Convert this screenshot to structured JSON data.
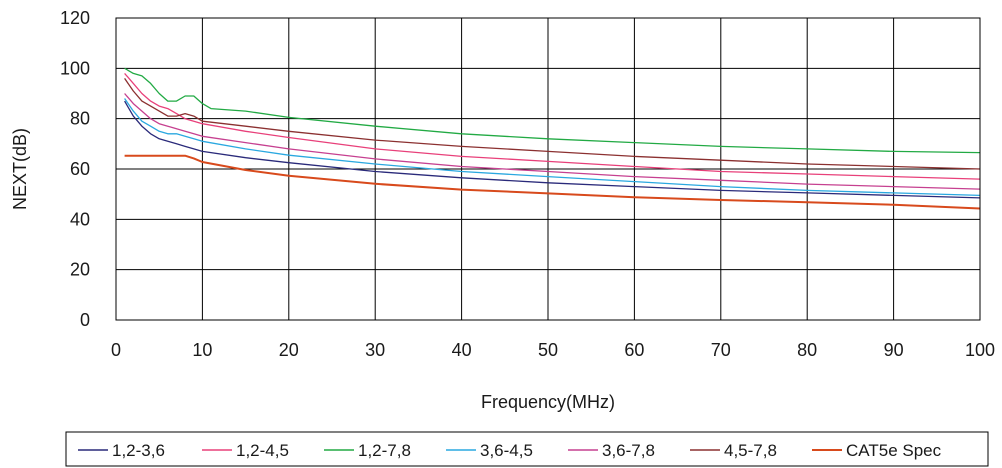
{
  "chart_data": {
    "type": "line",
    "xlabel": "Frequency(MHz)",
    "ylabel": "NEXT(dB)",
    "xlim": [
      0,
      100
    ],
    "ylim": [
      0,
      120
    ],
    "xticks": [
      0,
      10,
      20,
      30,
      40,
      50,
      60,
      70,
      80,
      90,
      100
    ],
    "yticks": [
      0,
      20,
      40,
      60,
      80,
      100,
      120
    ],
    "grid": true,
    "legend_position": "bottom",
    "series": [
      {
        "name": "1,2-3,6",
        "color": "#2a2a7a",
        "points": [
          [
            1,
            87
          ],
          [
            2,
            81
          ],
          [
            3,
            77
          ],
          [
            4,
            74
          ],
          [
            5,
            72
          ],
          [
            6,
            71
          ],
          [
            7,
            70
          ],
          [
            8,
            69
          ],
          [
            9,
            68
          ],
          [
            10,
            67
          ],
          [
            15,
            64.5
          ],
          [
            20,
            62.5
          ],
          [
            30,
            59
          ],
          [
            40,
            56.5
          ],
          [
            50,
            54.5
          ],
          [
            60,
            53
          ],
          [
            70,
            51.5
          ],
          [
            80,
            50.5
          ],
          [
            90,
            49.5
          ],
          [
            100,
            48.5
          ]
        ]
      },
      {
        "name": "1,2-4,5",
        "color": "#e8407a",
        "points": [
          [
            1,
            98
          ],
          [
            2,
            94
          ],
          [
            3,
            90
          ],
          [
            4,
            87
          ],
          [
            5,
            85
          ],
          [
            6,
            84
          ],
          [
            7,
            82
          ],
          [
            8,
            80
          ],
          [
            9,
            79
          ],
          [
            10,
            78
          ],
          [
            15,
            75
          ],
          [
            20,
            72.5
          ],
          [
            30,
            68
          ],
          [
            40,
            65
          ],
          [
            50,
            63
          ],
          [
            60,
            61
          ],
          [
            70,
            59
          ],
          [
            80,
            58
          ],
          [
            90,
            57
          ],
          [
            100,
            56
          ]
        ]
      },
      {
        "name": "1,2-7,8",
        "color": "#22aa44",
        "points": [
          [
            1,
            100
          ],
          [
            2,
            98
          ],
          [
            3,
            97
          ],
          [
            4,
            94
          ],
          [
            5,
            90
          ],
          [
            6,
            87
          ],
          [
            7,
            87
          ],
          [
            8,
            89
          ],
          [
            9,
            89
          ],
          [
            10,
            86
          ],
          [
            11,
            84
          ],
          [
            15,
            83
          ],
          [
            20,
            80.5
          ],
          [
            30,
            77
          ],
          [
            40,
            74
          ],
          [
            50,
            72
          ],
          [
            60,
            70.5
          ],
          [
            70,
            69
          ],
          [
            80,
            68
          ],
          [
            90,
            67
          ],
          [
            100,
            66.5
          ]
        ]
      },
      {
        "name": "3,6-4,5",
        "color": "#2aa8e0",
        "points": [
          [
            1,
            88
          ],
          [
            2,
            83
          ],
          [
            3,
            79
          ],
          [
            4,
            77
          ],
          [
            5,
            75
          ],
          [
            6,
            74
          ],
          [
            7,
            74
          ],
          [
            8,
            73
          ],
          [
            9,
            72
          ],
          [
            10,
            71
          ],
          [
            15,
            68
          ],
          [
            20,
            65.5
          ],
          [
            30,
            62
          ],
          [
            40,
            59
          ],
          [
            50,
            57
          ],
          [
            60,
            55
          ],
          [
            70,
            53
          ],
          [
            80,
            51.5
          ],
          [
            90,
            50.5
          ],
          [
            100,
            49.5
          ]
        ]
      },
      {
        "name": "3,6-7,8",
        "color": "#c64090",
        "points": [
          [
            1,
            90
          ],
          [
            2,
            86
          ],
          [
            3,
            83
          ],
          [
            4,
            80
          ],
          [
            5,
            78
          ],
          [
            6,
            77
          ],
          [
            7,
            76
          ],
          [
            8,
            75
          ],
          [
            9,
            74
          ],
          [
            10,
            73
          ],
          [
            15,
            70.5
          ],
          [
            20,
            68
          ],
          [
            30,
            64
          ],
          [
            40,
            61
          ],
          [
            50,
            59
          ],
          [
            60,
            57
          ],
          [
            70,
            55.5
          ],
          [
            80,
            54
          ],
          [
            90,
            53
          ],
          [
            100,
            52
          ]
        ]
      },
      {
        "name": "4,5-7,8",
        "color": "#8b3030",
        "points": [
          [
            1,
            96
          ],
          [
            2,
            91
          ],
          [
            3,
            87
          ],
          [
            4,
            85
          ],
          [
            5,
            83
          ],
          [
            6,
            81
          ],
          [
            7,
            81
          ],
          [
            8,
            82
          ],
          [
            9,
            81
          ],
          [
            10,
            79
          ],
          [
            15,
            77
          ],
          [
            20,
            75
          ],
          [
            30,
            71.5
          ],
          [
            40,
            69
          ],
          [
            50,
            67
          ],
          [
            60,
            65
          ],
          [
            70,
            63.5
          ],
          [
            80,
            62
          ],
          [
            90,
            61
          ],
          [
            100,
            60
          ]
        ]
      },
      {
        "name": "CAT5e Spec",
        "color": "#d84a1c",
        "points": [
          [
            1,
            65.3
          ],
          [
            2,
            65.3
          ],
          [
            3,
            65.3
          ],
          [
            4,
            65.3
          ],
          [
            5,
            65.3
          ],
          [
            6,
            65.3
          ],
          [
            7,
            65.3
          ],
          [
            8,
            65.3
          ],
          [
            9,
            64.2
          ],
          [
            10,
            62.8
          ],
          [
            15,
            59.6
          ],
          [
            20,
            57.3
          ],
          [
            30,
            54.1
          ],
          [
            40,
            51.8
          ],
          [
            50,
            50.3
          ],
          [
            60,
            48.8
          ],
          [
            70,
            47.7
          ],
          [
            80,
            46.8
          ],
          [
            90,
            45.8
          ],
          [
            100,
            44.3
          ]
        ]
      }
    ]
  }
}
